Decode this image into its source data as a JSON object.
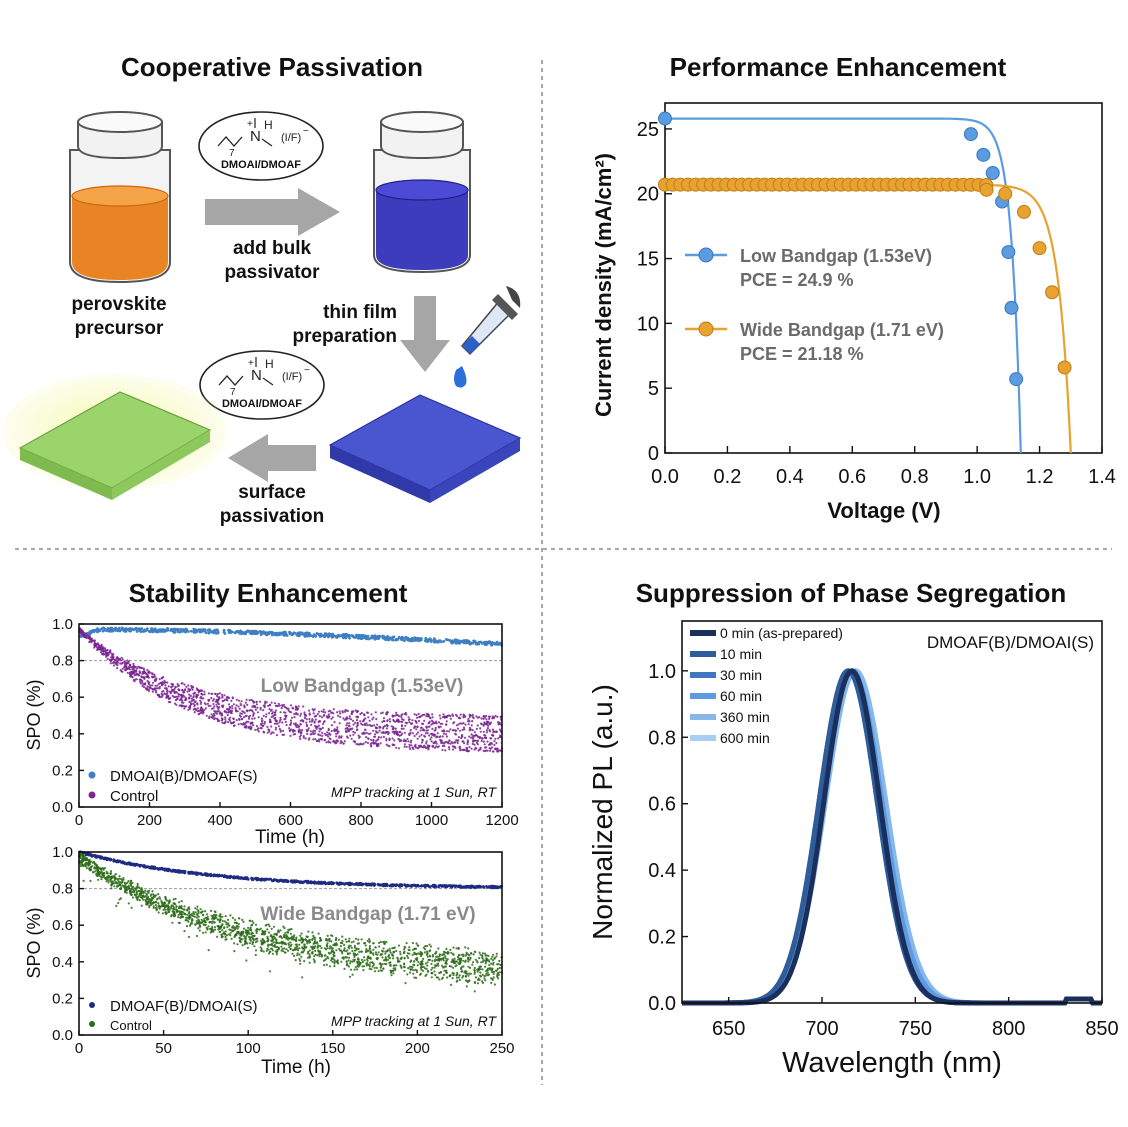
{
  "colors": {
    "low_blue": "#5b9be0",
    "wide_orange": "#e8a230",
    "dmoa_navy": "#1f2a80",
    "dmoai_low_blue": "#3f7fc2",
    "control_purple": "#7a2590",
    "control_green": "#2c6b18",
    "amber": "#e87b12",
    "indigo": "#2d2db8",
    "film_blue": "#4a55d0",
    "film_green": "#9ad46a",
    "arrow_gray": "#a6a6a6"
  },
  "schematic": {
    "title": "Cooperative Passivation",
    "molecule_label": "DMOAI/DMOAF",
    "molecule_anion": "(I/F)",
    "molecule_charge": "−",
    "molecule_plus": "+",
    "molecule_n": "N",
    "molecule_h": "H",
    "molecule_sub": "7",
    "precursor_line1": "perovskite",
    "precursor_line2": "precursor",
    "add_line1": "add bulk",
    "add_line2": "passivator",
    "thin_line1": "thin film",
    "thin_line2": "preparation",
    "surface_line1": "surface",
    "surface_line2": "passivation"
  },
  "chart_data": [
    {
      "id": "jv",
      "type": "line",
      "title": "Performance Enhancement",
      "xlabel": "Voltage (V)",
      "ylabel": "Current density (mA/cm²)",
      "xlim": [
        0,
        1.4
      ],
      "ylim": [
        0,
        27
      ],
      "xticks": [
        "0.0",
        "0.2",
        "0.4",
        "0.6",
        "0.8",
        "1.0",
        "1.2",
        "1.4"
      ],
      "yticks": [
        "0",
        "5",
        "10",
        "15",
        "20",
        "25"
      ],
      "series": [
        {
          "name": "Low Bandgap (1.53eV)",
          "pce": "PCE = 24.9 %",
          "jsc": 25.8,
          "voc": 1.14,
          "vk": 0.03,
          "markers": [
            [
              0.0,
              25.8
            ],
            [
              0.98,
              24.6
            ],
            [
              1.02,
              23.0
            ],
            [
              1.05,
              21.6
            ],
            [
              1.08,
              19.4
            ],
            [
              1.1,
              15.5
            ],
            [
              1.11,
              11.2
            ],
            [
              1.125,
              5.7
            ]
          ]
        },
        {
          "name": "Wide Bandgap (1.71 eV)",
          "pce": "PCE = 21.18 %",
          "jsc": 20.7,
          "voc": 1.3,
          "vk": 0.04,
          "markers": [
            [
              1.03,
              20.3
            ],
            [
              1.09,
              20.0
            ],
            [
              1.15,
              18.6
            ],
            [
              1.2,
              15.8
            ],
            [
              1.24,
              12.4
            ],
            [
              1.28,
              6.6
            ]
          ]
        }
      ]
    },
    {
      "id": "stab_low",
      "type": "scatter",
      "title": "Stability Enhancement",
      "xlabel": "Time (h)",
      "ylabel": "SPO (%)",
      "xlim": [
        0,
        1200
      ],
      "ylim": [
        0,
        1.0
      ],
      "xticks": [
        "0",
        "200",
        "400",
        "600",
        "800",
        "1000",
        "1200"
      ],
      "yticks": [
        "0.0",
        "0.2",
        "0.4",
        "0.6",
        "0.8",
        "1.0"
      ],
      "reference_line": 0.8,
      "annotation": "Low Bandgap (1.53eV)",
      "note": "MPP tracking at 1 Sun, RT",
      "series": [
        {
          "name": "DMOAI(B)/DMOAF(S)",
          "start": 0.93,
          "plateau": 0.97,
          "end": 0.89
        },
        {
          "name": "Control",
          "start": 0.97,
          "end_low": 0.3,
          "end_high": 0.48
        }
      ]
    },
    {
      "id": "stab_wide",
      "type": "scatter",
      "xlabel": "Time (h)",
      "ylabel": "SPO (%)",
      "xlim": [
        0,
        250
      ],
      "ylim": [
        0,
        1.0
      ],
      "xticks": [
        "0",
        "50",
        "100",
        "150",
        "200",
        "250"
      ],
      "yticks": [
        "0.0",
        "0.2",
        "0.4",
        "0.6",
        "0.8",
        "1.0"
      ],
      "reference_line": 0.8,
      "annotation": "Wide Bandgap (1.71 eV)",
      "note": "MPP tracking at 1 Sun, RT",
      "series": [
        {
          "name": "DMOAF(B)/DMOAI(S)",
          "start": 1.0,
          "end": 0.8
        },
        {
          "name": "Control",
          "start": 0.97,
          "end_low": 0.25,
          "end_high": 0.4
        }
      ]
    },
    {
      "id": "pl",
      "type": "line",
      "title": "Suppression of Phase Segregation",
      "xlabel": "Wavelength (nm)",
      "ylabel": "Normalized PL (a.u.)",
      "xlim": [
        625,
        850
      ],
      "ylim": [
        0,
        1.15
      ],
      "xticks": [
        "650",
        "700",
        "750",
        "800",
        "850"
      ],
      "yticks": [
        "0.0",
        "0.2",
        "0.4",
        "0.6",
        "0.8",
        "1.0"
      ],
      "annotation": "DMOAF(B)/DMOAI(S)",
      "series": [
        {
          "name": "0 min (as-prepared)",
          "peak": 716,
          "sigma": 25,
          "color": "#1a2f5c"
        },
        {
          "name": "10 min",
          "peak": 714,
          "sigma": 26,
          "color": "#2e5d9a"
        },
        {
          "name": "30 min",
          "peak": 714,
          "sigma": 26,
          "color": "#3f78c0"
        },
        {
          "name": "60 min",
          "peak": 716,
          "sigma": 27,
          "color": "#5d9be0"
        },
        {
          "name": "360 min",
          "peak": 718,
          "sigma": 27,
          "color": "#86b8ea"
        },
        {
          "name": "600 min",
          "peak": 717,
          "sigma": 28,
          "color": "#aacdf2"
        }
      ]
    }
  ]
}
